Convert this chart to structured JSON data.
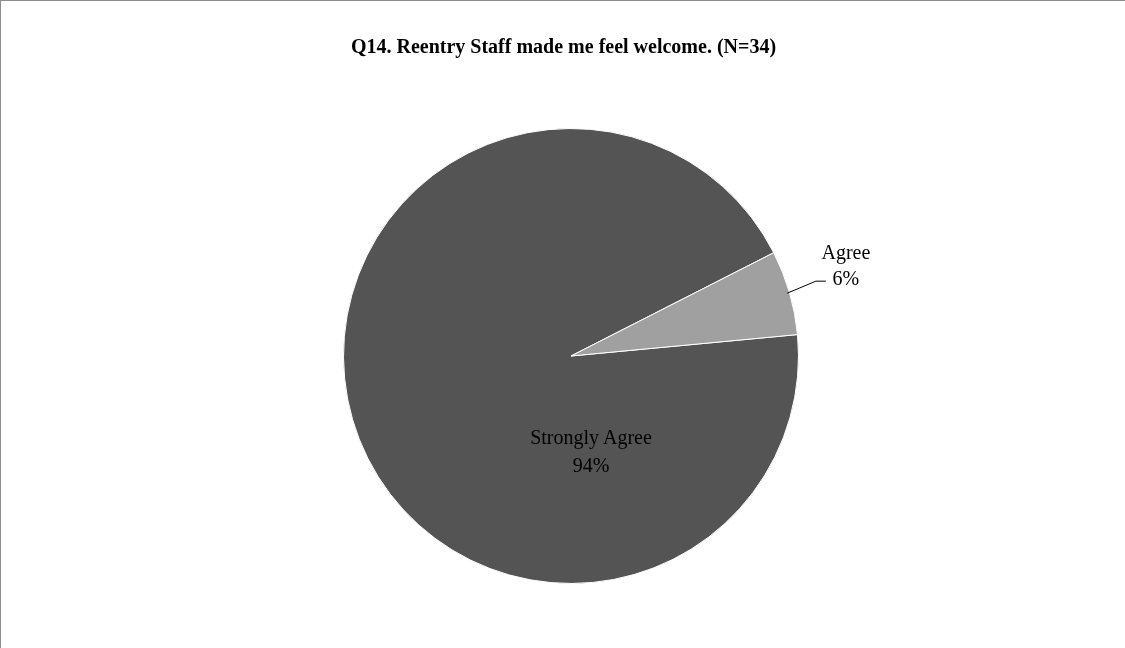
{
  "chart_data": {
    "type": "pie",
    "title": "Q14. Reentry Staff made me feel welcome. (N=34)",
    "categories": [
      "Strongly Agree",
      "Agree"
    ],
    "values": [
      94,
      6
    ],
    "colors": [
      "#545454",
      "#a0a0a0"
    ],
    "value_labels": [
      "94%",
      "6%"
    ],
    "legend": false
  }
}
